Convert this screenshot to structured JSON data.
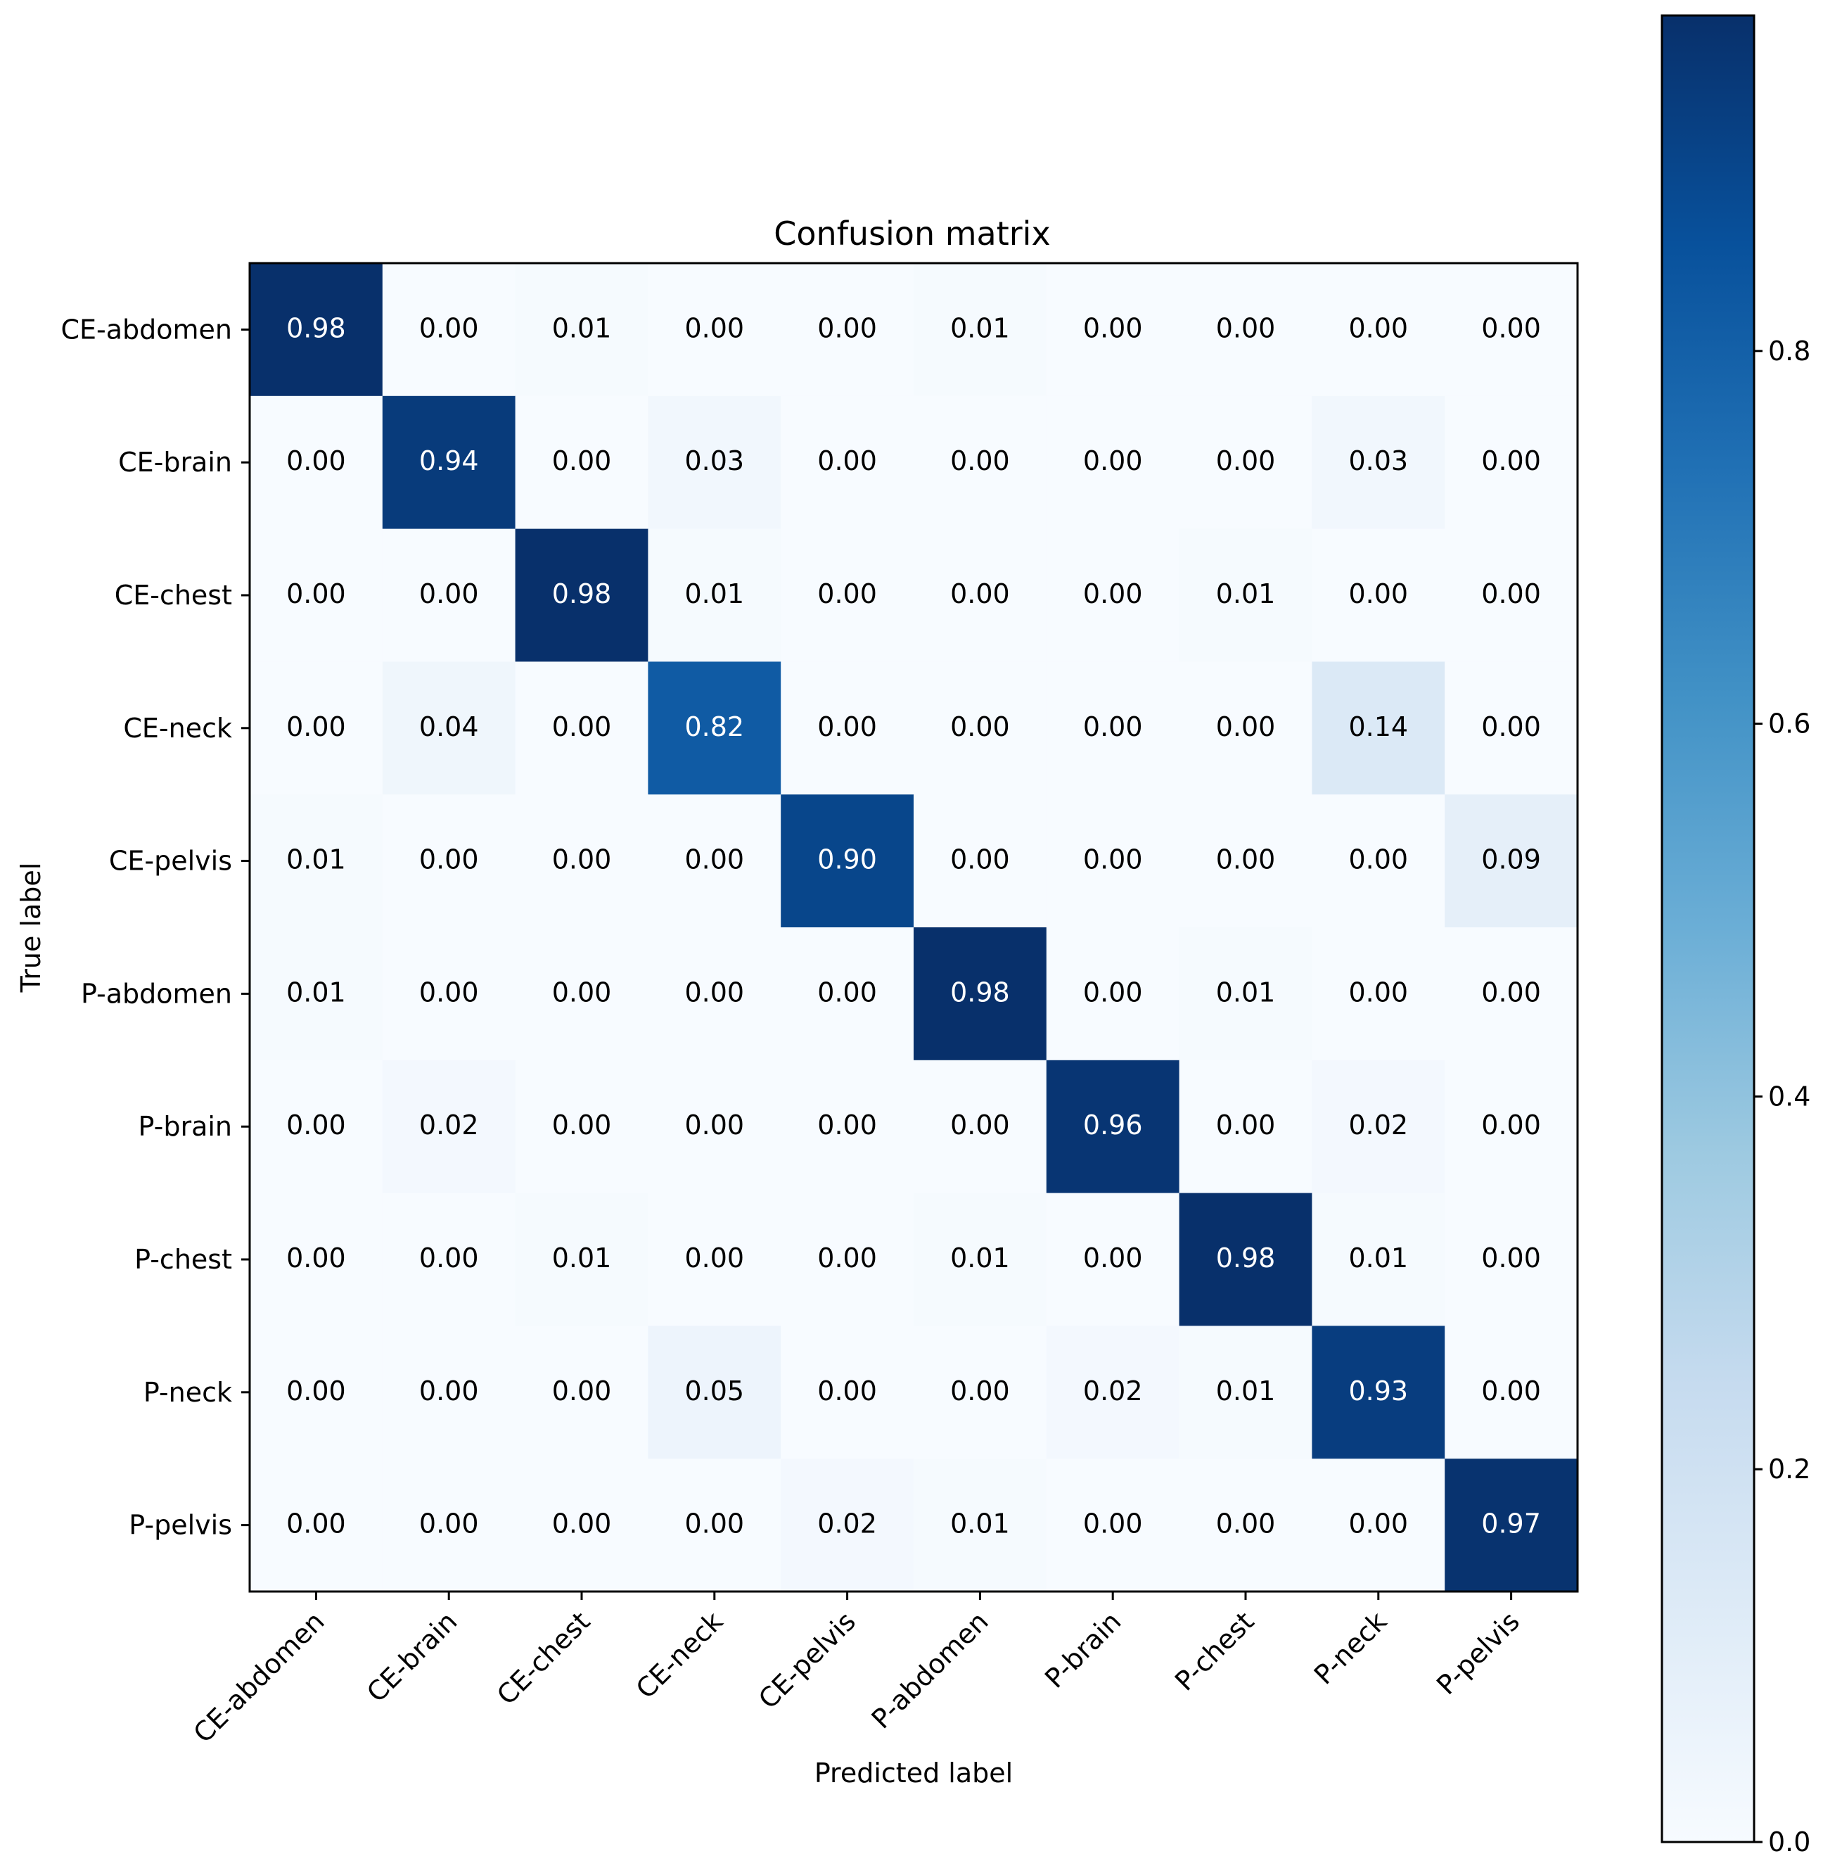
{
  "chart_data": {
    "type": "heatmap",
    "title": "Confusion matrix",
    "xlabel": "Predicted label",
    "ylabel": "True label",
    "x_categories": [
      "CE-abdomen",
      "CE-brain",
      "CE-chest",
      "CE-neck",
      "CE-pelvis",
      "P-abdomen",
      "P-brain",
      "P-chest",
      "P-neck",
      "P-pelvis"
    ],
    "y_categories": [
      "CE-abdomen",
      "CE-brain",
      "CE-chest",
      "CE-neck",
      "CE-pelvis",
      "P-abdomen",
      "P-brain",
      "P-chest",
      "P-neck",
      "P-pelvis"
    ],
    "values": [
      [
        0.98,
        0.0,
        0.01,
        0.0,
        0.0,
        0.01,
        0.0,
        0.0,
        0.0,
        0.0
      ],
      [
        0.0,
        0.94,
        0.0,
        0.03,
        0.0,
        0.0,
        0.0,
        0.0,
        0.03,
        0.0
      ],
      [
        0.0,
        0.0,
        0.98,
        0.01,
        0.0,
        0.0,
        0.0,
        0.01,
        0.0,
        0.0
      ],
      [
        0.0,
        0.04,
        0.0,
        0.82,
        0.0,
        0.0,
        0.0,
        0.0,
        0.14,
        0.0
      ],
      [
        0.01,
        0.0,
        0.0,
        0.0,
        0.9,
        0.0,
        0.0,
        0.0,
        0.0,
        0.09
      ],
      [
        0.01,
        0.0,
        0.0,
        0.0,
        0.0,
        0.98,
        0.0,
        0.01,
        0.0,
        0.0
      ],
      [
        0.0,
        0.02,
        0.0,
        0.0,
        0.0,
        0.0,
        0.96,
        0.0,
        0.02,
        0.0
      ],
      [
        0.0,
        0.0,
        0.01,
        0.0,
        0.0,
        0.01,
        0.0,
        0.98,
        0.01,
        0.0
      ],
      [
        0.0,
        0.0,
        0.0,
        0.05,
        0.0,
        0.0,
        0.02,
        0.01,
        0.93,
        0.0
      ],
      [
        0.0,
        0.0,
        0.0,
        0.0,
        0.02,
        0.01,
        0.0,
        0.0,
        0.0,
        0.97
      ]
    ],
    "value_format": "0.00",
    "colormap": "Blues",
    "colorbar": {
      "range": [
        0.0,
        0.98
      ],
      "ticks": [
        0.0,
        0.2,
        0.4,
        0.6,
        0.8
      ],
      "tick_labels": [
        "0.0",
        "0.2",
        "0.4",
        "0.6",
        "0.8"
      ]
    },
    "text_color_dark": "#000000",
    "text_color_light": "#ffffff",
    "grid": false
  }
}
